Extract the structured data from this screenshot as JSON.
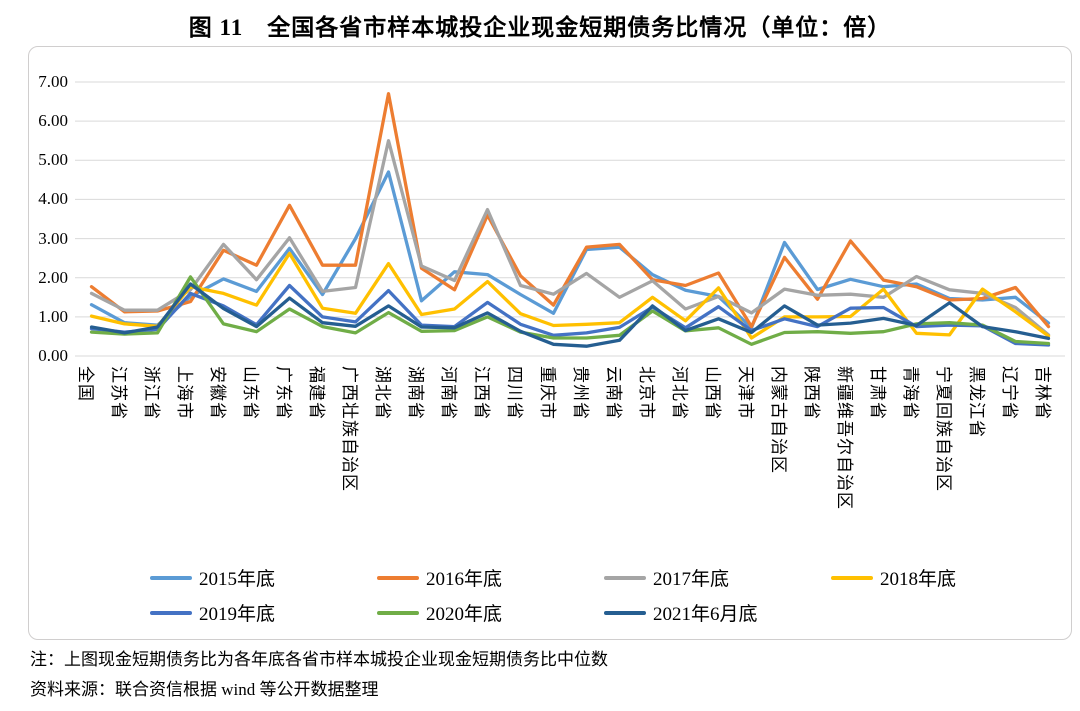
{
  "title": "图 11　全国各省市样本城投企业现金短期债务比情况（单位：倍）",
  "notes": {
    "note": "注：上图现金短期债务比为各年底各省市样本城投企业现金短期债务比中位数",
    "source": "资料来源：联合资信根据 wind 等公开数据整理"
  },
  "colors": {
    "grid": "#d9d9d9",
    "frame": "#d0cece",
    "text": "#000000"
  },
  "chart_data": {
    "type": "line",
    "title": "图 11　全国各省市样本城投企业现金短期债务比情况（单位：倍）",
    "xlabel": "",
    "ylabel": "",
    "unit": "倍",
    "ylim": [
      0,
      7
    ],
    "y_ticks": [
      "0.00",
      "1.00",
      "2.00",
      "3.00",
      "4.00",
      "5.00",
      "6.00",
      "7.00"
    ],
    "grid": true,
    "legend_position": "bottom",
    "categories": [
      "全国",
      "江苏省",
      "浙江省",
      "上海市",
      "安徽省",
      "山东省",
      "广东省",
      "福建省",
      "广西壮族自治区",
      "湖北省",
      "湖南省",
      "河南省",
      "江西省",
      "四川省",
      "重庆市",
      "贵州省",
      "云南省",
      "北京市",
      "河北省",
      "山西省",
      "天津市",
      "内蒙古自治区",
      "陕西省",
      "新疆维吾尔自治区",
      "甘肃省",
      "青海省",
      "宁夏回族自治区",
      "黑龙江省",
      "辽宁省",
      "吉林省"
    ],
    "series": [
      {
        "name": "2015年底",
        "color": "#5B9BD5",
        "values": [
          1.31,
          0.85,
          0.79,
          1.52,
          1.97,
          1.65,
          2.75,
          1.57,
          3.0,
          4.7,
          1.41,
          2.15,
          2.08,
          1.57,
          1.09,
          2.72,
          2.78,
          2.08,
          1.68,
          1.52,
          0.72,
          2.9,
          1.7,
          1.96,
          1.77,
          1.84,
          1.47,
          1.43,
          1.5,
          0.84
        ]
      },
      {
        "name": "2016年底",
        "color": "#ED7D31",
        "values": [
          1.77,
          1.13,
          1.15,
          1.39,
          2.7,
          2.32,
          3.85,
          2.32,
          2.32,
          6.7,
          2.24,
          1.69,
          3.6,
          2.05,
          1.3,
          2.78,
          2.85,
          1.95,
          1.8,
          2.12,
          0.75,
          2.52,
          1.45,
          2.94,
          1.94,
          1.77,
          1.43,
          1.47,
          1.75,
          0.75
        ]
      },
      {
        "name": "2017年底",
        "color": "#A5A5A5",
        "values": [
          1.6,
          1.17,
          1.17,
          1.69,
          2.85,
          1.95,
          3.02,
          1.65,
          1.75,
          5.5,
          2.3,
          1.93,
          3.74,
          1.8,
          1.58,
          2.11,
          1.5,
          1.92,
          1.2,
          1.52,
          1.1,
          1.71,
          1.55,
          1.58,
          1.5,
          2.03,
          1.69,
          1.6,
          1.24,
          0.54
        ]
      },
      {
        "name": "2018年底",
        "color": "#FFC000",
        "values": [
          1.02,
          0.82,
          0.76,
          1.77,
          1.6,
          1.3,
          2.62,
          1.22,
          1.09,
          2.36,
          1.06,
          1.2,
          1.9,
          1.08,
          0.78,
          0.81,
          0.85,
          1.5,
          0.9,
          1.74,
          0.46,
          1.0,
          1.0,
          1.01,
          1.71,
          0.58,
          0.54,
          1.71,
          1.13,
          0.51
        ]
      },
      {
        "name": "2019年底",
        "color": "#4472C4",
        "values": [
          0.7,
          0.61,
          0.68,
          1.6,
          1.28,
          0.8,
          1.8,
          1.0,
          0.87,
          1.67,
          0.79,
          0.75,
          1.37,
          0.81,
          0.53,
          0.59,
          0.73,
          1.25,
          0.72,
          1.26,
          0.65,
          0.95,
          0.75,
          1.22,
          1.24,
          0.75,
          0.79,
          0.77,
          0.32,
          0.28
        ]
      },
      {
        "name": "2020年底",
        "color": "#70AD47",
        "values": [
          0.61,
          0.56,
          0.59,
          2.02,
          0.82,
          0.62,
          1.2,
          0.75,
          0.59,
          1.11,
          0.63,
          0.65,
          1.0,
          0.61,
          0.46,
          0.46,
          0.53,
          1.15,
          0.64,
          0.72,
          0.3,
          0.6,
          0.62,
          0.58,
          0.62,
          0.82,
          0.85,
          0.79,
          0.37,
          0.32
        ]
      },
      {
        "name": "2021年6月底",
        "color": "#255E91",
        "values": [
          0.74,
          0.59,
          0.74,
          1.84,
          1.21,
          0.75,
          1.48,
          0.85,
          0.76,
          1.28,
          0.74,
          0.72,
          1.1,
          0.63,
          0.3,
          0.25,
          0.4,
          1.28,
          0.65,
          0.95,
          0.6,
          1.28,
          0.79,
          0.84,
          0.96,
          0.78,
          1.36,
          0.75,
          0.62,
          0.45
        ]
      }
    ]
  }
}
